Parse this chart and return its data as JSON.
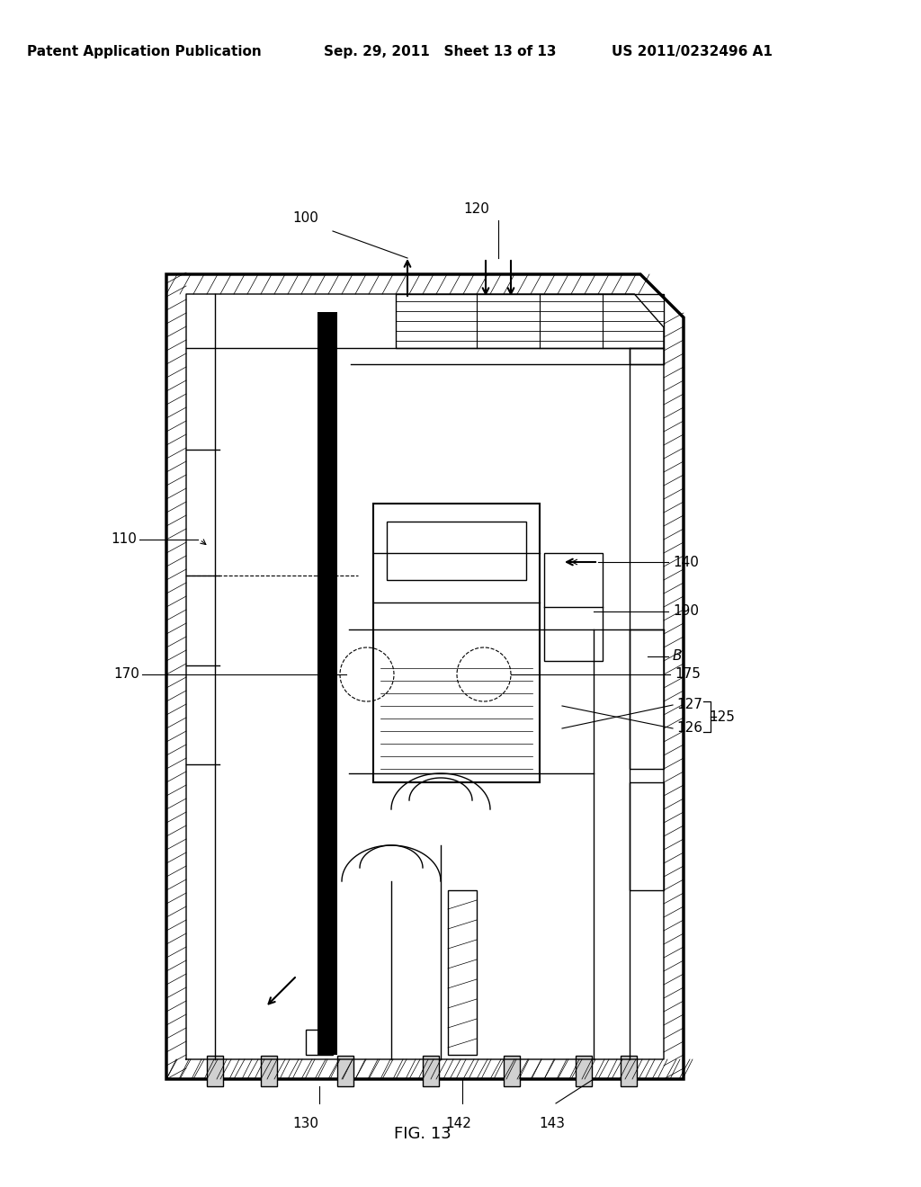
{
  "bg_color": "#ffffff",
  "header_left": "Patent Application Publication",
  "header_mid": "Sep. 29, 2011   Sheet 13 of 13",
  "header_right": "US 2011/0232496 A1",
  "caption": "FIG. 13"
}
